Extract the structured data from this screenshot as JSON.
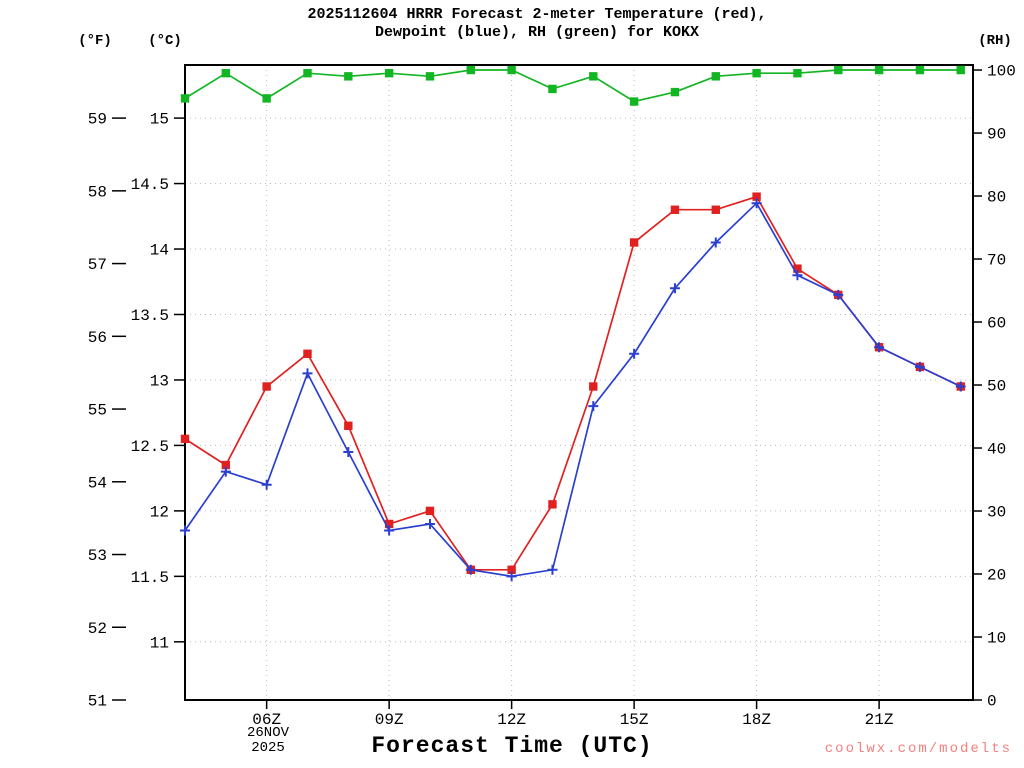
{
  "title": {
    "line1": "2025112604 HRRR Forecast 2-meter Temperature (red),",
    "line2": "Dewpoint (blue), RH (green) for KOKX"
  },
  "axes": {
    "left_outer_label": "(°F)",
    "left_inner_label": "(°C)",
    "right_label": "(RH)",
    "x_label": "Forecast Time (UTC)",
    "date_line1": "26NOV",
    "date_line2": "2025",
    "f_ticks": [
      51,
      52,
      53,
      54,
      55,
      56,
      57,
      58,
      59
    ],
    "c_ticks": [
      11,
      11.5,
      12,
      12.5,
      13,
      13.5,
      14,
      14.5,
      15
    ],
    "rh_ticks": [
      0,
      10,
      20,
      30,
      40,
      50,
      60,
      70,
      80,
      90,
      100
    ],
    "x_tick_labels": [
      "06Z",
      "09Z",
      "12Z",
      "15Z",
      "18Z",
      "21Z"
    ],
    "x_tick_hours": [
      6,
      9,
      12,
      15,
      18,
      21
    ]
  },
  "watermark": {
    "text": "coolwx.com/modelts",
    "color": "#f4807f"
  },
  "colors": {
    "temperature": "#e12120",
    "dewpoint": "#2b3fd0",
    "rh": "#12b522",
    "grid": "#bcbcbc",
    "axis": "#000000"
  },
  "chart_data": {
    "type": "line",
    "title": "2025112604 HRRR Forecast 2-meter Temperature (red), Dewpoint (blue), RH (green) for KOKX",
    "xlabel": "Forecast Time (UTC)",
    "station": "KOKX",
    "legend_position": "in-title",
    "grid": "dotted",
    "x_hours_utc": [
      4,
      5,
      6,
      7,
      8,
      9,
      10,
      11,
      12,
      13,
      14,
      15,
      16,
      17,
      18,
      19,
      20,
      21,
      22,
      23
    ],
    "x_axis": {
      "min": 4,
      "max": 23.3
    },
    "f_range": [
      51,
      59.73
    ],
    "c_range": [
      10.56,
      15.41
    ],
    "rh_range": [
      0,
      100.8
    ],
    "series": [
      {
        "key": "temperature",
        "name": "2-meter Temperature",
        "unit": "°C",
        "axis": "c",
        "marker": "square-filled",
        "color_key": "temperature",
        "values": [
          12.55,
          12.35,
          12.95,
          13.2,
          12.65,
          11.9,
          12.0,
          11.55,
          11.55,
          12.05,
          12.95,
          14.05,
          14.3,
          14.3,
          14.4,
          13.85,
          13.65,
          13.25,
          13.1,
          12.95
        ]
      },
      {
        "key": "dewpoint",
        "name": "2-meter Dewpoint",
        "unit": "°C",
        "axis": "c",
        "marker": "plus",
        "color_key": "dewpoint",
        "values": [
          11.85,
          12.3,
          12.2,
          13.05,
          12.45,
          11.85,
          11.9,
          11.55,
          11.5,
          11.55,
          12.8,
          13.2,
          13.7,
          14.05,
          14.35,
          13.8,
          13.65,
          13.25,
          13.1,
          12.95
        ]
      },
      {
        "key": "rh",
        "name": "Relative Humidity",
        "unit": "%",
        "axis": "rh",
        "marker": "square-filled",
        "color_key": "rh",
        "values": [
          95.5,
          99.5,
          95.5,
          99.5,
          99,
          99.5,
          99,
          100,
          100,
          97,
          99,
          95,
          96.5,
          99,
          99.5,
          99.5,
          100,
          100,
          100,
          100
        ]
      }
    ]
  }
}
